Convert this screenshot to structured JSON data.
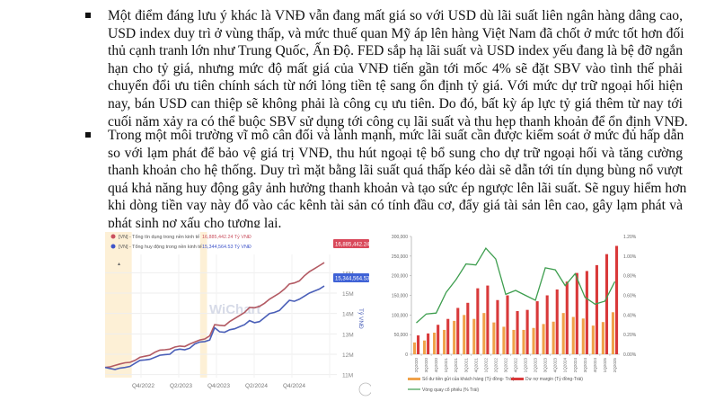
{
  "document": {
    "bullets": [
      {
        "lines": [
          "Một điểm đáng lưu ý khác là VNĐ vẫn đang mất giá so với USD dù lãi suất liên ngân hàng dâng cao,",
          "USD index duy trì ở vùng thấp, và mức thuế quan Mỹ áp lên hàng Việt Nam đã chốt ở mức tốt hơn đối",
          "thủ cạnh tranh lớn như Trung Quốc, Ấn Độ. FED sắp hạ lãi suất và USD index yếu đang là bệ đỡ ngắn",
          "hạn cho tỷ giá, nhưng mức độ mất giá của VNĐ tiến gần tới mốc 4% sẽ đặt SBV vào tình thế phải",
          "chuyển đổi ưu tiên chính sách từ nới lỏng tiền tệ sang ổn định tỷ giá. Với mức dự trữ ngoại hối hiện",
          "nay, bán USD can thiệp sẽ không phải là công cụ ưu tiên. Do đó, bất kỳ áp lực tỷ giá thêm từ nay tới",
          "cuối năm xảy ra có thể buộc SBV sử dụng tới công cụ lãi suất và thu hẹp thanh khoản để ổn định VNĐ."
        ]
      },
      {
        "lines": [
          "Trong một môi trường vĩ mô cân đối và lành mạnh, mức lãi suất cần được kiểm soát ở mức đủ hấp dẫn",
          "so với lạm phát để bảo vệ giá trị VNĐ, thu hút ngoại tệ bổ sung cho dự trữ ngoại hối và tăng cường",
          "thanh khoản cho hệ thống. Duy trì mặt bằng lãi suất quá thấp kéo dài sẽ dẫn tới tín dụng bùng nổ vượt",
          "quá khả năng huy động gây ảnh hưởng thanh khoản và tạo sức ép ngược lên lãi suất. Sẽ nguy hiểm hơn",
          "khi dòng tiền vay này đổ vào các kênh tài sản có tính đầu cơ, đẩy giá tài sản lên cao, gây lạm phát và",
          "phát sinh nợ xấu cho tương lai."
        ]
      }
    ]
  },
  "chart_data": [
    {
      "type": "line",
      "title": "",
      "ylabel": "Tỷ VNĐ",
      "xlabel": "",
      "watermark": "WiChart",
      "x_ticks": [
        "Q4/2022",
        "Q2/2023",
        "Q4/2023",
        "Q2/2024",
        "Q4/2024"
      ],
      "y_ticks": [
        "11M",
        "12M",
        "13M",
        "14M",
        "15M",
        "16M"
      ],
      "ylim": [
        10800000,
        16900000
      ],
      "legend": [
        {
          "label": "[VN] - Tổng tín dụng trong nền kinh tế",
          "value": "16,885,442.24 Tỷ VNĐ",
          "color": "#c9505f"
        },
        {
          "label": "[VN] - Tổng huy động trong nền kinh tế",
          "value": "15,344,564.53 Tỷ VNĐ",
          "color": "#3f55c9"
        }
      ],
      "last_value_badges": [
        "16,885,442.24",
        "15,344,564.53"
      ],
      "series": [
        {
          "name": "Tổng tín dụng trong nền kinh tế",
          "color": "#b35a63",
          "values": [
            11.35,
            11.38,
            11.45,
            11.52,
            11.58,
            11.6,
            11.7,
            11.85,
            11.9,
            11.95,
            12.1,
            12.2,
            12.22,
            12.25,
            12.35,
            12.4,
            12.38,
            12.5,
            12.6,
            12.7,
            12.75,
            12.9,
            13.45,
            13.42,
            13.4,
            13.6,
            13.75,
            13.9,
            14.05,
            14.3,
            14.28,
            14.35,
            14.5,
            14.7,
            14.85,
            15.0,
            15.2,
            15.45,
            15.5,
            15.6,
            15.85,
            16.05,
            16.2,
            16.35,
            16.5
          ]
        },
        {
          "name": "Tổng huy động trong nền kinh tế",
          "color": "#4a5fb8",
          "values": [
            11.35,
            11.3,
            11.25,
            11.32,
            11.35,
            11.4,
            11.55,
            11.7,
            11.72,
            11.75,
            11.85,
            11.95,
            11.98,
            12.0,
            12.2,
            12.25,
            12.22,
            12.3,
            12.5,
            12.6,
            12.62,
            12.7,
            13.3,
            13.1,
            13.08,
            13.2,
            13.25,
            13.35,
            13.45,
            13.65,
            13.55,
            13.6,
            13.8,
            14.0,
            14.05,
            14.15,
            14.4,
            14.65,
            14.6,
            14.7,
            14.85,
            15.0,
            15.1,
            15.2,
            15.35
          ]
        }
      ],
      "highlight_bands": [
        [
          0.0,
          0.115
        ],
        [
          0.41,
          0.44
        ]
      ]
    },
    {
      "type": "bar",
      "title": "",
      "categories": [
        "2Q2020",
        "3Q2020",
        "4Q2020",
        "1Q2021",
        "2Q2021",
        "3Q2021",
        "4Q2021",
        "1Q2022",
        "2Q2022",
        "3Q2022",
        "4Q2022",
        "1Q2023",
        "2Q2023",
        "3Q2023",
        "4Q2023",
        "1Q2024",
        "2Q2024",
        "3Q2024",
        "4Q2024",
        "1Q2025",
        "2Q2025"
      ],
      "y_ticks_left": [
        "0",
        "50,000",
        "100,000",
        "150,000",
        "200,000",
        "250,000",
        "300,000"
      ],
      "y_ticks_right": [
        "0.00%",
        "0.20%",
        "0.40%",
        "0.60%",
        "0.80%",
        "1.00%",
        "1.20%"
      ],
      "ylim_left": [
        0,
        300000
      ],
      "ylim_right": [
        0,
        1.2
      ],
      "series": [
        {
          "name": "Số dư tiền gửi của khách hàng (Tỷ đồng- Trái)",
          "type": "bar",
          "color": "#f0a24a",
          "axis": "left",
          "values": [
            30000,
            35000,
            55000,
            62000,
            85000,
            100000,
            90000,
            105000,
            81000,
            70000,
            62000,
            62000,
            67000,
            77000,
            83000,
            105000,
            95000,
            91000,
            73000,
            82000,
            107000
          ]
        },
        {
          "name": "Dư nợ margin (Tỷ đồng-Trái)",
          "type": "bar",
          "color": "#d9393a",
          "axis": "left",
          "values": [
            48000,
            53000,
            75000,
            90000,
            118000,
            131000,
            168000,
            175000,
            138000,
            150000,
            110000,
            113000,
            135000,
            150000,
            165000,
            185000,
            207000,
            212000,
            227000,
            255000,
            276000
          ]
        },
        {
          "name": "Vòng quay cổ phiếu (% Trái)",
          "type": "line",
          "color": "#3e9e4f",
          "axis": "right",
          "values": [
            0.32,
            0.41,
            0.42,
            0.63,
            0.76,
            0.92,
            0.91,
            1.08,
            0.97,
            0.61,
            0.65,
            0.6,
            0.55,
            0.88,
            0.86,
            0.7,
            0.82,
            0.58,
            0.51,
            0.54,
            0.74
          ]
        }
      ],
      "legend": [
        {
          "label": "Số dư tiền gửi của khách hàng (Tỷ đồng- Trái)",
          "color": "#f0a24a"
        },
        {
          "label": "Dư nợ margin (Tỷ đồng-Trái)",
          "color": "#d9393a"
        },
        {
          "label": "Vòng quay cổ phiếu (% Trái)",
          "color": "#3e9e4f"
        }
      ]
    }
  ]
}
